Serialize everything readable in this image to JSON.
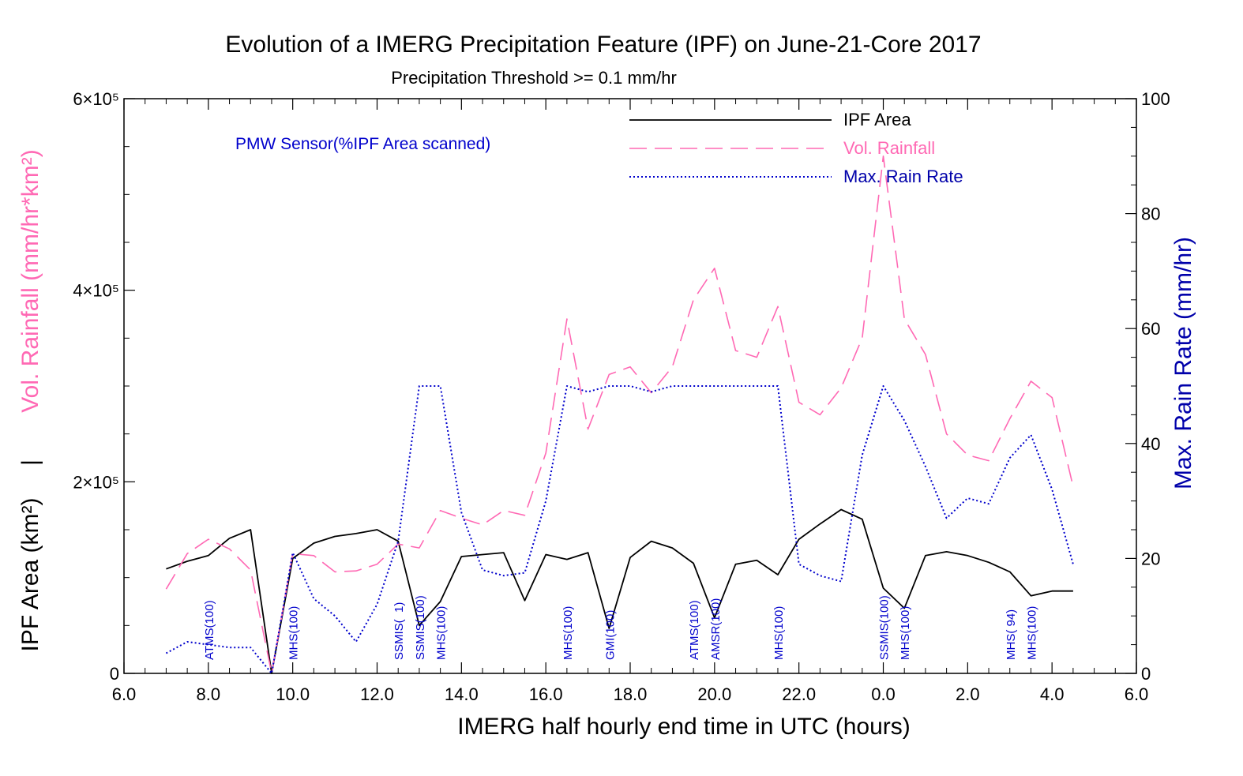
{
  "chart_data": {
    "type": "line",
    "title": "Evolution of a IMERG Precipitation Feature (IPF) on June-21-Core 2017",
    "subtitle": "Precipitation Threshold >= 0.1 mm/hr",
    "xlabel": "IMERG half hourly end time in UTC (hours)",
    "ylabel_left_rainfall": "Vol. Rainfall (mm/hr*km²)",
    "ylabel_left_separator": "|",
    "ylabel_left_area": "IPF Area (km²)",
    "ylabel_right": "Max. Rain Rate (mm/hr)",
    "sensor_legend": "PMW Sensor(%IPF Area scanned)",
    "x_ticks": [
      "6.0",
      "8.0",
      "10.0",
      "12.0",
      "14.0",
      "16.0",
      "18.0",
      "20.0",
      "22.0",
      "0.0",
      "2.0",
      "4.0",
      "6.0"
    ],
    "x_minor_step": 0.5,
    "xlim": [
      6,
      30
    ],
    "y_left_ticks": [
      {
        "value": 0,
        "label": "0"
      },
      {
        "value": 200000,
        "label": "2×10⁵"
      },
      {
        "value": 400000,
        "label": "4×10⁵"
      },
      {
        "value": 600000,
        "label": "6×10⁵"
      }
    ],
    "ylim_left": [
      0,
      600000
    ],
    "y_right_ticks": [
      "0",
      "20",
      "40",
      "60",
      "80",
      "100"
    ],
    "ylim_right": [
      0,
      100
    ],
    "x": [
      7.0,
      7.5,
      8.0,
      8.5,
      9.0,
      9.5,
      10.0,
      10.5,
      11.0,
      11.5,
      12.0,
      12.5,
      13.0,
      13.5,
      14.0,
      14.5,
      15.0,
      15.5,
      16.0,
      16.5,
      17.0,
      17.5,
      18.0,
      18.5,
      19.0,
      19.5,
      20.0,
      20.5,
      21.0,
      21.5,
      22.0,
      22.5,
      23.0,
      23.5,
      24.0,
      24.5,
      25.0,
      25.5,
      26.0,
      26.5,
      27.0,
      27.5,
      28.0,
      28.5
    ],
    "series": [
      {
        "name": "IPF Area",
        "color": "#000000",
        "axis": "left",
        "style": "solid",
        "values": [
          109000,
          117000,
          123000,
          141000,
          150000,
          0,
          120000,
          136000,
          143000,
          146000,
          150000,
          138000,
          50000,
          75000,
          122000,
          124000,
          126000,
          76000,
          124000,
          119000,
          126000,
          47000,
          121000,
          138000,
          131000,
          115000,
          58000,
          114000,
          118000,
          103000,
          140000,
          156000,
          171000,
          161000,
          89000,
          68000,
          123000,
          127000,
          123000,
          116000,
          106000,
          81000,
          86000,
          86000
        ]
      },
      {
        "name": "Vol. Rainfall",
        "color": "#ff69b4",
        "axis": "left",
        "style": "dashed",
        "values": [
          88000,
          125000,
          140000,
          130000,
          108000,
          0,
          125000,
          123000,
          106000,
          107000,
          114000,
          135000,
          131000,
          170000,
          162000,
          155000,
          170000,
          165000,
          230000,
          370000,
          255000,
          312000,
          320000,
          293000,
          320000,
          390000,
          423000,
          337000,
          330000,
          383000,
          283000,
          270000,
          298000,
          350000,
          540000,
          370000,
          333000,
          250000,
          228000,
          222000,
          266000,
          305000,
          288000,
          195000
        ]
      },
      {
        "name": "Max. Rain Rate",
        "color": "#0000cc",
        "axis": "right",
        "style": "dotted",
        "values": [
          3.5,
          5.5,
          5.0,
          4.5,
          4.5,
          0,
          21,
          13,
          10,
          5.5,
          12,
          23,
          50,
          50,
          28,
          18,
          17,
          17.5,
          30,
          50,
          49,
          50,
          50,
          49,
          50,
          50,
          50,
          50,
          50,
          50,
          19,
          17,
          16,
          38,
          50,
          44,
          36,
          27,
          30.5,
          29.5,
          37.5,
          41.5,
          32,
          19
        ]
      }
    ],
    "sensor_annotations": [
      {
        "x": 8.0,
        "label": "ATMS(100)"
      },
      {
        "x": 10.0,
        "label": "MHS(100)"
      },
      {
        "x": 12.5,
        "label": "SSMIS(  1)"
      },
      {
        "x": 13.0,
        "label": "SSMIS(100)"
      },
      {
        "x": 13.5,
        "label": "MHS(100)"
      },
      {
        "x": 16.5,
        "label": "MHS(100)"
      },
      {
        "x": 17.5,
        "label": "GMI(100)"
      },
      {
        "x": 19.5,
        "label": "ATMS(100)"
      },
      {
        "x": 20.0,
        "label": "AMSR(100)"
      },
      {
        "x": 21.5,
        "label": "MHS(100)"
      },
      {
        "x": 24.0,
        "label": "SSMIS(100)"
      },
      {
        "x": 24.5,
        "label": "MHS(100)"
      },
      {
        "x": 27.0,
        "label": "MHS( 94)"
      },
      {
        "x": 27.5,
        "label": "MHS(100)"
      }
    ],
    "legend_placement": "top-right",
    "grid": false
  }
}
